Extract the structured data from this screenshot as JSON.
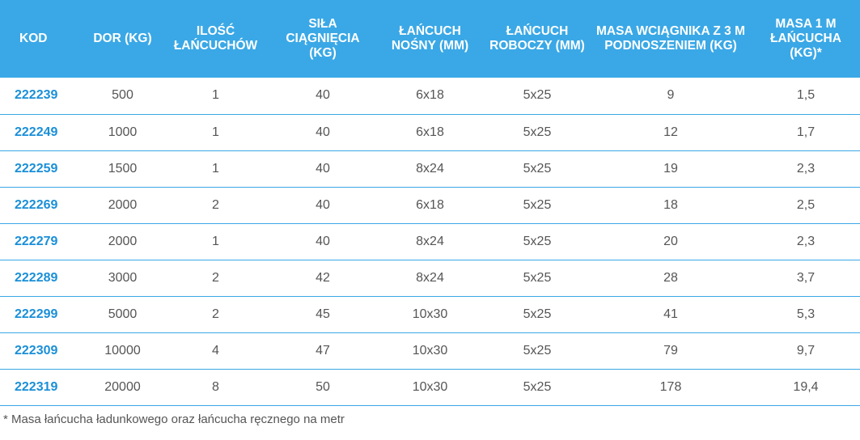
{
  "table": {
    "headers": [
      "KOD",
      "DOR (KG)",
      "ILOŚĆ ŁAŃCUCHÓW",
      "SIŁA CIĄGNIĘCIA (KG)",
      "ŁAŃCUCH NOŚNY (MM)",
      "ŁAŃCUCH ROBOCZY (MM)",
      "MASA WCIĄGNIKA Z 3 M PODNOSZENIEM (KG)",
      "MASA 1 M ŁAŃCUCHA (KG)*"
    ],
    "rows": [
      [
        "222239",
        "500",
        "1",
        "40",
        "6x18",
        "5x25",
        "9",
        "1,5"
      ],
      [
        "222249",
        "1000",
        "1",
        "40",
        "6x18",
        "5x25",
        "12",
        "1,7"
      ],
      [
        "222259",
        "1500",
        "1",
        "40",
        "8x24",
        "5x25",
        "19",
        "2,3"
      ],
      [
        "222269",
        "2000",
        "2",
        "40",
        "6x18",
        "5x25",
        "18",
        "2,5"
      ],
      [
        "222279",
        "2000",
        "1",
        "40",
        "8x24",
        "5x25",
        "20",
        "2,3"
      ],
      [
        "222289",
        "3000",
        "2",
        "42",
        "8x24",
        "5x25",
        "28",
        "3,7"
      ],
      [
        "222299",
        "5000",
        "2",
        "45",
        "10x30",
        "5x25",
        "41",
        "5,3"
      ],
      [
        "222309",
        "10000",
        "4",
        "47",
        "10x30",
        "5x25",
        "79",
        "9,7"
      ],
      [
        "222319",
        "20000",
        "8",
        "50",
        "10x30",
        "5x25",
        "178",
        "19,4"
      ]
    ]
  },
  "footnote": "* Masa łańcucha ładunkowego oraz łańcucha ręcznego na metr",
  "colors": {
    "header_bg": "#3aa8e6",
    "code_text": "#1a8fd8",
    "row_divider": "#3aa8e6",
    "body_text": "#555555"
  }
}
